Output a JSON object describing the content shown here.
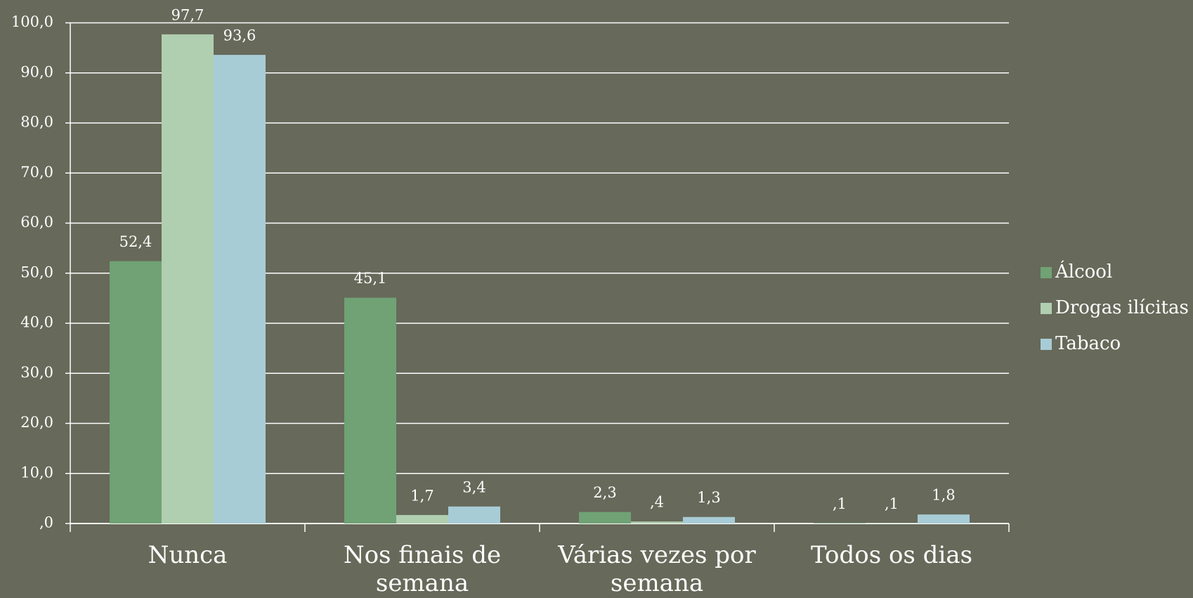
{
  "chart_data": {
    "type": "bar",
    "categories": [
      "Nunca",
      "Nos finais de semana",
      "Várias vezes por semana",
      "Todos os dias"
    ],
    "series": [
      {
        "name": "Álcool",
        "color": "#70a275",
        "values": [
          52.4,
          45.1,
          2.3,
          0.1
        ],
        "value_labels": [
          "52,4",
          "45,1",
          "2,3",
          ",1"
        ]
      },
      {
        "name": "Drogas ilícitas",
        "color": "#b0ceb0",
        "values": [
          97.7,
          1.7,
          0.4,
          0.1
        ],
        "value_labels": [
          "97,7",
          "1,7",
          ",4",
          ",1"
        ]
      },
      {
        "name": "Tabaco",
        "color": "#a8ccd6",
        "values": [
          93.6,
          3.4,
          1.3,
          1.8
        ],
        "value_labels": [
          "93,6",
          "3,4",
          "1,3",
          "1,8"
        ]
      }
    ],
    "ylim": [
      0,
      100
    ],
    "yticks": [
      {
        "value": 0,
        "label": ",0"
      },
      {
        "value": 10,
        "label": "10,0"
      },
      {
        "value": 20,
        "label": "20,0"
      },
      {
        "value": 30,
        "label": "30,0"
      },
      {
        "value": 40,
        "label": "40,0"
      },
      {
        "value": 50,
        "label": "50,0"
      },
      {
        "value": 60,
        "label": "60,0"
      },
      {
        "value": 70,
        "label": "70,0"
      },
      {
        "value": 80,
        "label": "80,0"
      },
      {
        "value": 90,
        "label": "90,0"
      },
      {
        "value": 100,
        "label": "100,0"
      }
    ],
    "grid": true,
    "legend": "right"
  }
}
